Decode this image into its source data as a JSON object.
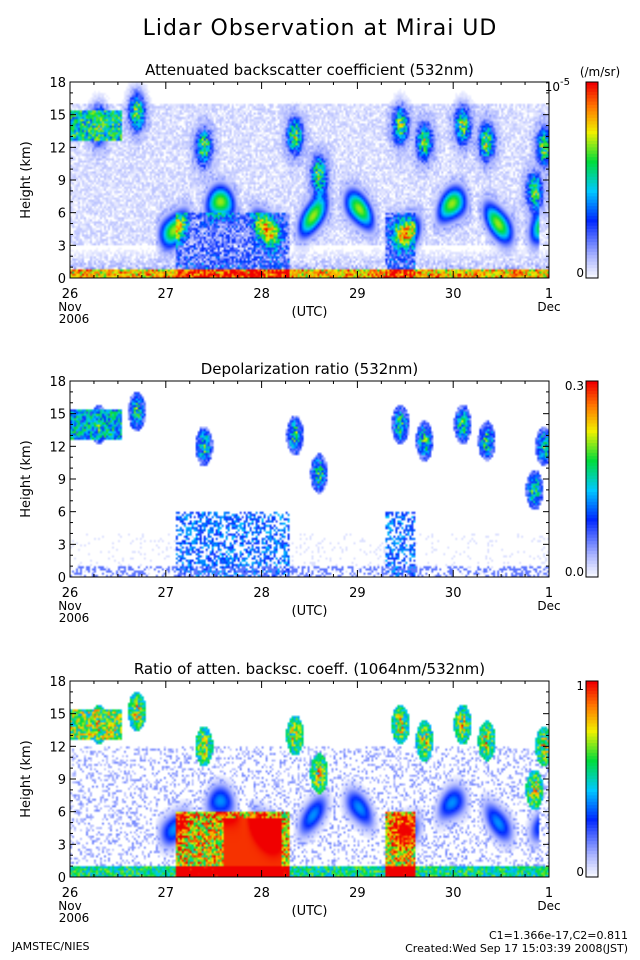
{
  "title": "Lidar Observation at Mirai UD",
  "footer": {
    "left": "JAMSTEC/NIES",
    "constants": "C1=1.366e-17,C2=0.811",
    "created": "Created:Wed Sep 17 15:03:39 2008(JST)"
  },
  "chart_data": [
    {
      "type": "heatmap",
      "title": "Attenuated backscatter coefficient (532nm)",
      "ylabel": "Height (km)",
      "xlabel": "(UTC)",
      "x_ticks": [
        "26",
        "27",
        "28",
        "29",
        "30",
        "1"
      ],
      "x_subticks": [
        {
          "at": "26",
          "lines": [
            "Nov",
            "2006"
          ]
        },
        {
          "at": "1",
          "lines": [
            "Dec"
          ]
        }
      ],
      "y_ticks": [
        "0",
        "3",
        "6",
        "9",
        "12",
        "15",
        "18"
      ],
      "ylim": [
        0,
        18
      ],
      "colorbar": {
        "unit": "(/m/sr)",
        "max_label": "10",
        "max_exponent": "-5",
        "min_label": "0"
      },
      "colormap": "rainbow",
      "colors": {
        "low": "#ffffff",
        "mid": "#0033ff",
        "high": "#ff0000"
      }
    },
    {
      "type": "heatmap",
      "title": "Depolarization ratio (532nm)",
      "ylabel": "Height (km)",
      "xlabel": "(UTC)",
      "x_ticks": [
        "26",
        "27",
        "28",
        "29",
        "30",
        "1"
      ],
      "x_subticks": [
        {
          "at": "26",
          "lines": [
            "Nov",
            "2006"
          ]
        },
        {
          "at": "1",
          "lines": [
            "Dec"
          ]
        }
      ],
      "y_ticks": [
        "0",
        "3",
        "6",
        "9",
        "12",
        "15",
        "18"
      ],
      "ylim": [
        0,
        18
      ],
      "colorbar": {
        "unit": "",
        "max_label": "0.3",
        "max_exponent": "",
        "min_label": "0.0"
      },
      "colormap": "rainbow",
      "colors": {
        "low": "#ffffff",
        "mid": "#0033ff",
        "high": "#ff0000"
      }
    },
    {
      "type": "heatmap",
      "title": "Ratio of atten. backsc. coeff. (1064nm/532nm)",
      "ylabel": "Height (km)",
      "xlabel": "(UTC)",
      "x_ticks": [
        "26",
        "27",
        "28",
        "29",
        "30",
        "1"
      ],
      "x_subticks": [
        {
          "at": "26",
          "lines": [
            "Nov",
            "2006"
          ]
        },
        {
          "at": "1",
          "lines": [
            "Dec"
          ]
        }
      ],
      "y_ticks": [
        "0",
        "3",
        "6",
        "9",
        "12",
        "15",
        "18"
      ],
      "ylim": [
        0,
        18
      ],
      "colorbar": {
        "unit": "",
        "max_label": "1",
        "max_exponent": "",
        "min_label": "0"
      },
      "colormap": "rainbow",
      "colors": {
        "low": "#ffffff",
        "mid": "#0033ff",
        "high": "#ff0000"
      }
    }
  ]
}
